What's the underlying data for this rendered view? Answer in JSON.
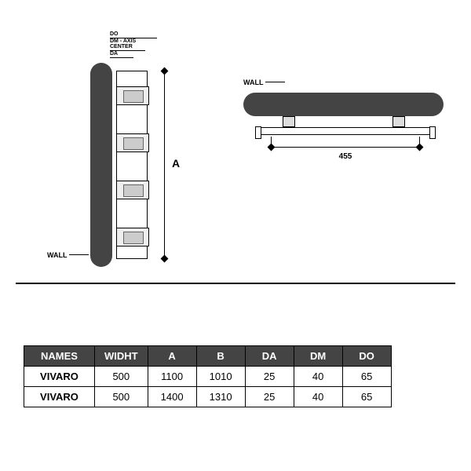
{
  "labels": {
    "wall": "WALL",
    "dimA": "A",
    "dim455": "455",
    "do": "DO",
    "dm": "DM - AXIS CENTER",
    "da": "DA"
  },
  "table": {
    "columns": [
      "NAMES",
      "WIDHT",
      "A",
      "B",
      "DA",
      "DM",
      "DO"
    ],
    "rows": [
      [
        "VIVARO",
        "500",
        "1100",
        "1010",
        "25",
        "40",
        "65"
      ],
      [
        "VIVARO",
        "500",
        "1400",
        "1310",
        "25",
        "40",
        "65"
      ]
    ]
  },
  "style": {
    "panel_color": "#444444",
    "header_bg": "#444444",
    "header_fg": "#ffffff",
    "border_color": "#000000",
    "background": "#ffffff",
    "font": "Arial"
  }
}
